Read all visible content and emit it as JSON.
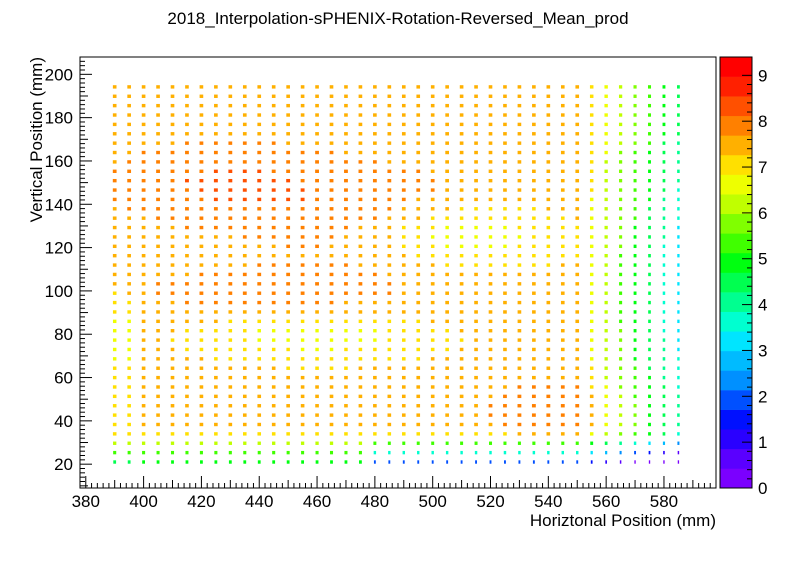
{
  "chart_data": {
    "type": "heatmap",
    "title": "2018_Interpolation-sPHENIX-Rotation-Reversed_Mean_prod",
    "xlabel": "Horiztonal Position (mm)",
    "ylabel": "Vertical Position (mm)",
    "xlim": [
      378,
      598
    ],
    "ylim": [
      9,
      208
    ],
    "x_ticks": [
      380,
      400,
      420,
      440,
      460,
      480,
      500,
      520,
      540,
      560,
      580
    ],
    "y_ticks": [
      20,
      40,
      60,
      80,
      100,
      120,
      140,
      160,
      180,
      200
    ],
    "z_ticks": [
      0,
      1,
      2,
      3,
      4,
      5,
      6,
      7,
      8,
      9
    ],
    "zlim": [
      0,
      9.4
    ],
    "grid": false,
    "colorbar": "right",
    "grid_points": {
      "x_start": 390,
      "x_end": 585,
      "x_step": 5,
      "y_start": 21,
      "y_end": 195,
      "y_step": 4.33
    },
    "palette": [
      "#7b00ff",
      "#5a00ff",
      "#2a00ff",
      "#0010ff",
      "#0050ff",
      "#0090ff",
      "#00bbff",
      "#00e5ff",
      "#00ffd0",
      "#00ff90",
      "#00ff50",
      "#00ff10",
      "#40ff00",
      "#80ff00",
      "#c0ff00",
      "#eeff00",
      "#ffe000",
      "#ffb000",
      "#ff8000",
      "#ff5000",
      "#ff2000",
      "#ff0000"
    ]
  }
}
